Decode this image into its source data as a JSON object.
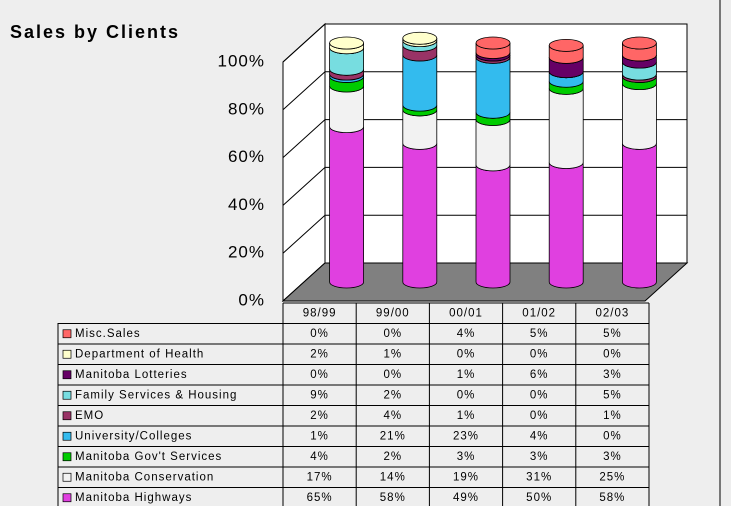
{
  "chart_data": {
    "type": "bar",
    "stacked": true,
    "title": "Sales by Clients",
    "categories": [
      "98/99",
      "99/00",
      "00/01",
      "01/02",
      "02/03"
    ],
    "ylim": [
      0,
      100
    ],
    "yticks": [
      {
        "value": 0,
        "label": "0%"
      },
      {
        "value": 20,
        "label": "20%"
      },
      {
        "value": 40,
        "label": "40%"
      },
      {
        "value": 60,
        "label": "60%"
      },
      {
        "value": 80,
        "label": "80%"
      },
      {
        "value": 100,
        "label": "100%"
      }
    ],
    "grid": true,
    "series": [
      {
        "name": "Manitoba Highways",
        "color": "#e040e0",
        "values": [
          65,
          58,
          49,
          50,
          58
        ],
        "value_labels": [
          "65%",
          "58%",
          "49%",
          "50%",
          "58%"
        ]
      },
      {
        "name": "Manitoba Conservation",
        "color": "#f2f2f2",
        "values": [
          17,
          14,
          19,
          31,
          25
        ],
        "value_labels": [
          "17%",
          "14%",
          "19%",
          "31%",
          "25%"
        ]
      },
      {
        "name": "Manitoba Gov't Services",
        "color": "#00cc00",
        "values": [
          4,
          2,
          3,
          3,
          3
        ],
        "value_labels": [
          "4%",
          "2%",
          "3%",
          "3%",
          "3%"
        ]
      },
      {
        "name": "University/Colleges",
        "color": "#33bbee",
        "values": [
          1,
          21,
          23,
          4,
          0
        ],
        "value_labels": [
          "1%",
          "21%",
          "23%",
          "4%",
          "0%"
        ]
      },
      {
        "name": "EMO",
        "color": "#993366",
        "values": [
          2,
          4,
          1,
          0,
          1
        ],
        "value_labels": [
          "2%",
          "4%",
          "1%",
          "0%",
          "1%"
        ]
      },
      {
        "name": "Family Services & Housing",
        "color": "#77dde0",
        "values": [
          9,
          2,
          0,
          0,
          5
        ],
        "value_labels": [
          "9%",
          "2%",
          "0%",
          "0%",
          "5%"
        ]
      },
      {
        "name": "Manitoba Lotteries",
        "color": "#660066",
        "values": [
          0,
          0,
          1,
          6,
          3
        ],
        "value_labels": [
          "0%",
          "0%",
          "1%",
          "6%",
          "3%"
        ]
      },
      {
        "name": "Department of Health",
        "color": "#ffffcc",
        "values": [
          2,
          1,
          0,
          0,
          0
        ],
        "value_labels": [
          "2%",
          "1%",
          "0%",
          "0%",
          "0%"
        ]
      },
      {
        "name": "Misc.Sales",
        "color": "#ff6666",
        "values": [
          0,
          0,
          4,
          5,
          5
        ],
        "value_labels": [
          "0%",
          "0%",
          "4%",
          "5%",
          "5%"
        ]
      }
    ]
  }
}
